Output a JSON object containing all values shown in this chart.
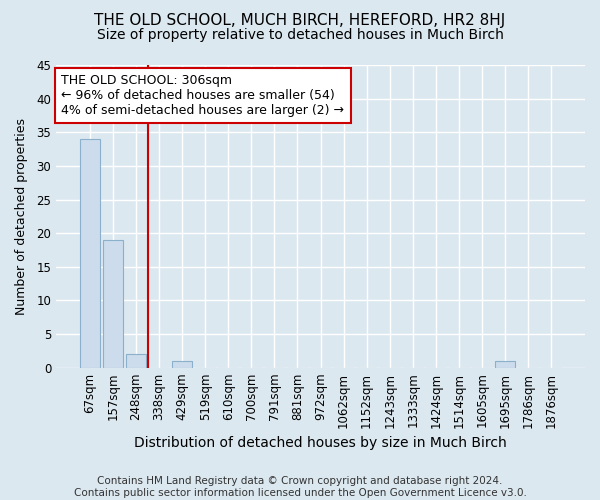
{
  "title": "THE OLD SCHOOL, MUCH BIRCH, HEREFORD, HR2 8HJ",
  "subtitle": "Size of property relative to detached houses in Much Birch",
  "xlabel": "Distribution of detached houses by size in Much Birch",
  "ylabel": "Number of detached properties",
  "categories": [
    "67sqm",
    "157sqm",
    "248sqm",
    "338sqm",
    "429sqm",
    "519sqm",
    "610sqm",
    "700sqm",
    "791sqm",
    "881sqm",
    "972sqm",
    "1062sqm",
    "1152sqm",
    "1243sqm",
    "1333sqm",
    "1424sqm",
    "1514sqm",
    "1605sqm",
    "1695sqm",
    "1786sqm",
    "1876sqm"
  ],
  "values": [
    34,
    19,
    2,
    0,
    1,
    0,
    0,
    0,
    0,
    0,
    0,
    0,
    0,
    0,
    0,
    0,
    0,
    0,
    1,
    0,
    0
  ],
  "bar_color": "#ccdcec",
  "bar_edge_color": "#8ab0cc",
  "vline_x_index": 2.5,
  "vline_color": "#cc0000",
  "annotation_text": "THE OLD SCHOOL: 306sqm\n← 96% of detached houses are smaller (54)\n4% of semi-detached houses are larger (2) →",
  "annotation_box_color": "#ffffff",
  "annotation_box_edge": "#cc0000",
  "ylim": [
    0,
    45
  ],
  "yticks": [
    0,
    5,
    10,
    15,
    20,
    25,
    30,
    35,
    40,
    45
  ],
  "footer": "Contains HM Land Registry data © Crown copyright and database right 2024.\nContains public sector information licensed under the Open Government Licence v3.0.",
  "background_color": "#dce8f0",
  "axes_background": "#dce8f0",
  "grid_color": "#ffffff",
  "title_fontsize": 11,
  "subtitle_fontsize": 10,
  "xlabel_fontsize": 10,
  "ylabel_fontsize": 9,
  "footer_fontsize": 7.5,
  "tick_fontsize": 8.5
}
